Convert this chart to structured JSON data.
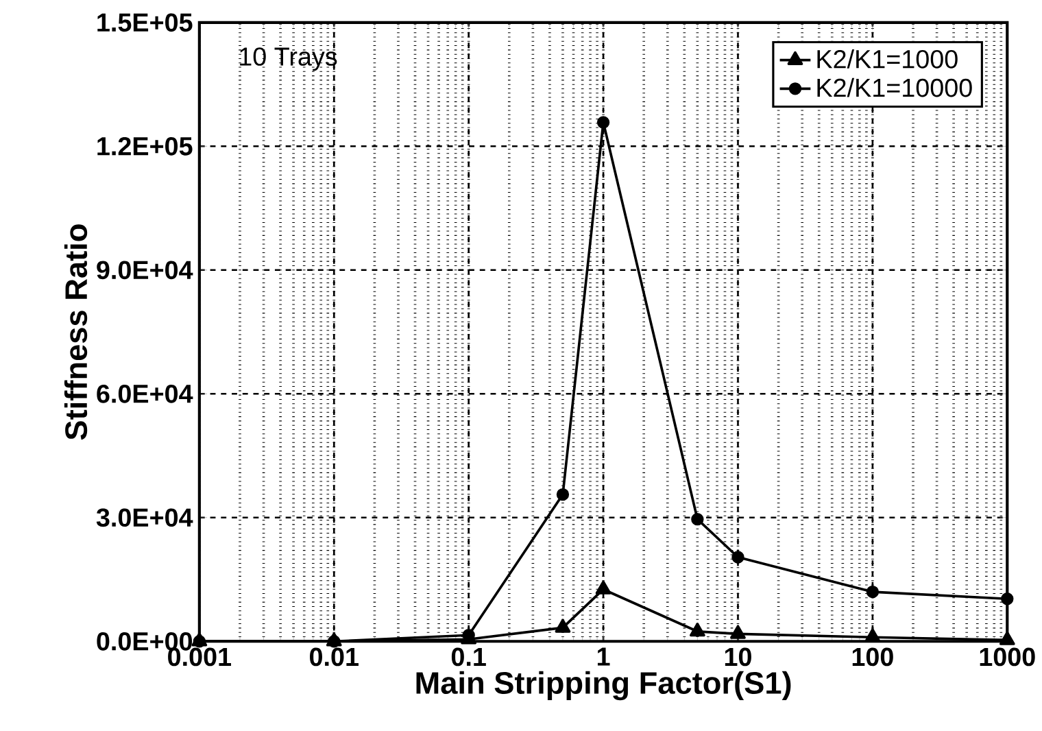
{
  "chart_data": {
    "type": "line",
    "xlabel": "Main Stripping Factor(S1)",
    "ylabel": "Stiffness Ratio",
    "annotations": [
      "10 Trays"
    ],
    "x": [
      0.001,
      0.01,
      0.1,
      0.5,
      1,
      5,
      10,
      100,
      1000
    ],
    "series": [
      {
        "name": "K2/K1=1000",
        "color": "#000000",
        "marker": "triangle",
        "values": [
          0,
          0,
          500,
          3300,
          12600,
          2400,
          1800,
          1000,
          300
        ]
      },
      {
        "name": "K2/K1=10000",
        "color": "#000000",
        "marker": "circle",
        "values": [
          0,
          0,
          1500,
          35600,
          125800,
          29600,
          20400,
          12000,
          10300
        ]
      }
    ],
    "log": "x",
    "xlim": [
      0.001,
      1000
    ],
    "xticks": [
      0.001,
      0.01,
      0.1,
      1,
      10,
      100,
      1000
    ],
    "ylim": [
      0,
      150000
    ],
    "yticks": [
      {
        "value": 0,
        "label": "0.0E+00"
      },
      {
        "value": 30000,
        "label": "3.0E+04"
      },
      {
        "value": 60000,
        "label": "6.0E+04"
      },
      {
        "value": 90000,
        "label": "9.0E+04"
      },
      {
        "value": 120000,
        "label": "1.2E+05"
      },
      {
        "value": 150000,
        "label": "1.5E+05"
      }
    ],
    "grid": true,
    "legend": "top right",
    "line_style": "solid"
  }
}
